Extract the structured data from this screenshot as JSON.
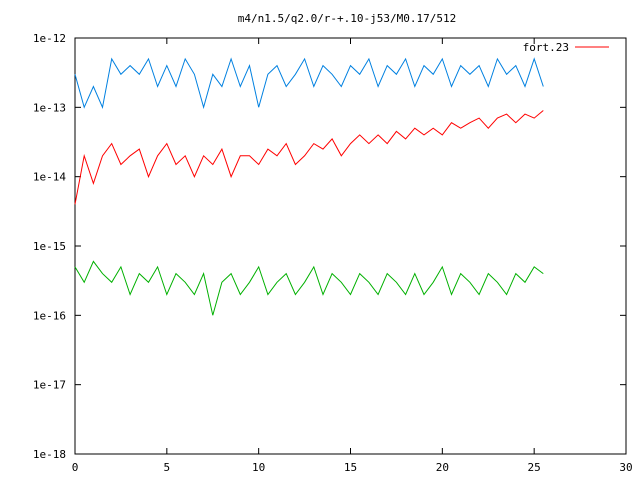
{
  "chart_data": {
    "type": "line",
    "title": "m4/n1.5/q2.0/r-+.10-j53/M0.17/512",
    "xlabel": "",
    "ylabel": "",
    "xlim": [
      0,
      30
    ],
    "ylim": [
      1e-18,
      1e-12
    ],
    "y_scale": "log",
    "grid": false,
    "legend_placement": "top-right",
    "x_ticks": [
      0,
      5,
      10,
      15,
      20,
      25,
      30
    ],
    "x_tick_labels": [
      "0",
      "5",
      "10",
      "15",
      "20",
      "25",
      "30"
    ],
    "y_ticks": [
      1e-18,
      1e-17,
      1e-16,
      1e-15,
      1e-14,
      1e-13,
      1e-12
    ],
    "y_tick_labels": [
      "1e-18",
      "1e-17",
      "1e-16",
      "1e-15",
      "1e-14",
      "1e-13",
      "1e-12"
    ],
    "series": [
      {
        "name": "fort.23",
        "color": "#ff0000",
        "x": [
          0,
          0.5,
          1,
          1.5,
          2,
          2.5,
          3,
          3.5,
          4,
          4.5,
          5,
          5.5,
          6,
          6.5,
          7,
          7.5,
          8,
          8.5,
          9,
          9.5,
          10,
          10.5,
          11,
          11.5,
          12,
          12.5,
          13,
          13.5,
          14,
          14.5,
          15,
          15.5,
          16,
          16.5,
          17,
          17.5,
          18,
          18.5,
          19,
          19.5,
          20,
          20.5,
          21,
          21.5,
          22,
          22.5,
          23,
          23.5,
          24,
          24.5,
          25,
          25.5
        ],
        "y": [
          4e-15,
          2e-14,
          8e-15,
          2e-14,
          3e-14,
          1.5e-14,
          2e-14,
          2.5e-14,
          1e-14,
          2e-14,
          3e-14,
          1.5e-14,
          2e-14,
          1e-14,
          2e-14,
          1.5e-14,
          2.5e-14,
          1e-14,
          2e-14,
          2e-14,
          1.5e-14,
          2.5e-14,
          2e-14,
          3e-14,
          1.5e-14,
          2e-14,
          3e-14,
          2.5e-14,
          3.5e-14,
          2e-14,
          3e-14,
          4e-14,
          3e-14,
          4e-14,
          3e-14,
          4.5e-14,
          3.5e-14,
          5e-14,
          4e-14,
          5e-14,
          4e-14,
          6e-14,
          5e-14,
          6e-14,
          7e-14,
          5e-14,
          7e-14,
          8e-14,
          6e-14,
          8e-14,
          7e-14,
          9e-14
        ]
      },
      {
        "name": "",
        "color": "#0080e0",
        "x": [
          0,
          0.5,
          1,
          1.5,
          2,
          2.5,
          3,
          3.5,
          4,
          4.5,
          5,
          5.5,
          6,
          6.5,
          7,
          7.5,
          8,
          8.5,
          9,
          9.5,
          10,
          10.5,
          11,
          11.5,
          12,
          12.5,
          13,
          13.5,
          14,
          14.5,
          15,
          15.5,
          16,
          16.5,
          17,
          17.5,
          18,
          18.5,
          19,
          19.5,
          20,
          20.5,
          21,
          21.5,
          22,
          22.5,
          23,
          23.5,
          24,
          24.5,
          25,
          25.5
        ],
        "y": [
          3e-13,
          1e-13,
          2e-13,
          1e-13,
          5e-13,
          3e-13,
          4e-13,
          3e-13,
          5e-13,
          2e-13,
          4e-13,
          2e-13,
          5e-13,
          3e-13,
          1e-13,
          3e-13,
          2e-13,
          5e-13,
          2e-13,
          4e-13,
          1e-13,
          3e-13,
          4e-13,
          2e-13,
          3e-13,
          5e-13,
          2e-13,
          4e-13,
          3e-13,
          2e-13,
          4e-13,
          3e-13,
          5e-13,
          2e-13,
          4e-13,
          3e-13,
          5e-13,
          2e-13,
          4e-13,
          3e-13,
          5e-13,
          2e-13,
          4e-13,
          3e-13,
          4e-13,
          2e-13,
          5e-13,
          3e-13,
          4e-13,
          2e-13,
          5e-13,
          2e-13
        ]
      },
      {
        "name": "",
        "color": "#00b000",
        "x": [
          0,
          0.5,
          1,
          1.5,
          2,
          2.5,
          3,
          3.5,
          4,
          4.5,
          5,
          5.5,
          6,
          6.5,
          7,
          7.5,
          8,
          8.5,
          9,
          9.5,
          10,
          10.5,
          11,
          11.5,
          12,
          12.5,
          13,
          13.5,
          14,
          14.5,
          15,
          15.5,
          16,
          16.5,
          17,
          17.5,
          18,
          18.5,
          19,
          19.5,
          20,
          20.5,
          21,
          21.5,
          22,
          22.5,
          23,
          23.5,
          24,
          24.5,
          25,
          25.5
        ],
        "y": [
          5e-16,
          3e-16,
          6e-16,
          4e-16,
          3e-16,
          5e-16,
          2e-16,
          4e-16,
          3e-16,
          5e-16,
          2e-16,
          4e-16,
          3e-16,
          2e-16,
          4e-16,
          1e-16,
          3e-16,
          4e-16,
          2e-16,
          3e-16,
          5e-16,
          2e-16,
          3e-16,
          4e-16,
          2e-16,
          3e-16,
          5e-16,
          2e-16,
          4e-16,
          3e-16,
          2e-16,
          4e-16,
          3e-16,
          2e-16,
          4e-16,
          3e-16,
          2e-16,
          4e-16,
          2e-16,
          3e-16,
          5e-16,
          2e-16,
          4e-16,
          3e-16,
          2e-16,
          4e-16,
          3e-16,
          2e-16,
          4e-16,
          3e-16,
          5e-16,
          4e-16
        ]
      }
    ]
  }
}
